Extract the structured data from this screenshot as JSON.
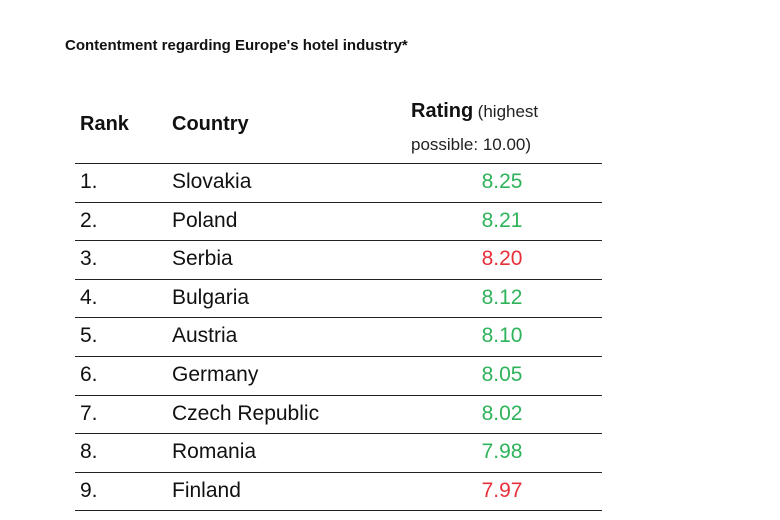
{
  "header": {
    "title": "Contentment regarding Europe's hotel industry*"
  },
  "table": {
    "columns": {
      "rank": "Rank",
      "country": "Country",
      "rating": "Rating",
      "rating_note": "(highest possible: 10.00)"
    },
    "rows": [
      {
        "rank": "1.",
        "country": "Slovakia",
        "rating": "8.25",
        "color": "#2fb35a"
      },
      {
        "rank": "2.",
        "country": "Poland",
        "rating": "8.21",
        "color": "#2fb35a"
      },
      {
        "rank": "3.",
        "country": "Serbia",
        "rating": "8.20",
        "color": "#e8303a"
      },
      {
        "rank": "4.",
        "country": "Bulgaria",
        "rating": "8.12",
        "color": "#2fb35a"
      },
      {
        "rank": "5.",
        "country": "Austria",
        "rating": "8.10",
        "color": "#2fb35a"
      },
      {
        "rank": "6.",
        "country": "Germany",
        "rating": "8.05",
        "color": "#2fb35a"
      },
      {
        "rank": "7.",
        "country": "Czech Republic",
        "rating": "8.02",
        "color": "#2fb35a"
      },
      {
        "rank": "8.",
        "country": "Romania",
        "rating": "7.98",
        "color": "#2fb35a"
      },
      {
        "rank": "9.",
        "country": "Finland",
        "rating": "7.97",
        "color": "#e8303a"
      }
    ]
  }
}
